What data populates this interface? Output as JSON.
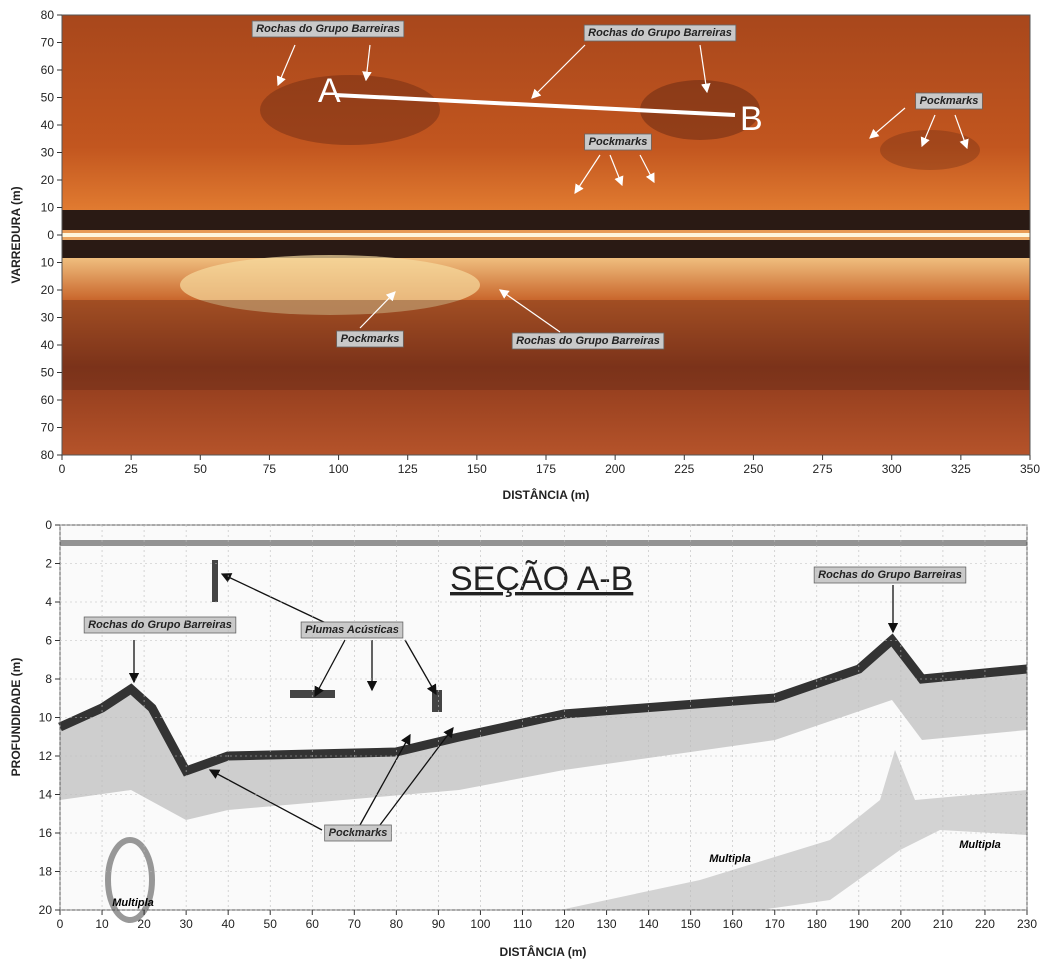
{
  "top_panel": {
    "y_axis_label": "VARREDURA (m)",
    "x_axis_label": "DISTÂNCIA (m)",
    "xticks": [
      0,
      25,
      50,
      75,
      100,
      125,
      150,
      175,
      200,
      225,
      250,
      275,
      300,
      325,
      350
    ],
    "yticks": [
      80,
      70,
      60,
      50,
      40,
      30,
      20,
      10,
      0,
      10,
      20,
      30,
      40,
      50,
      60,
      70,
      80
    ],
    "labels": [
      "Rochas do Grupo Barreiras",
      "Rochas do Grupo Barreiras",
      "Pockmarks",
      "Pockmarks",
      "Pockmarks",
      "Rochas do Grupo Barreiras"
    ],
    "point_a": "A",
    "point_b": "B"
  },
  "bottom_panel": {
    "title": "SEÇÃO A-B",
    "y_axis_label": "PROFUNDIDADE (m)",
    "x_axis_label": "DISTÂNCIA (m)",
    "xticks": [
      0,
      10,
      20,
      30,
      40,
      50,
      60,
      70,
      80,
      90,
      100,
      110,
      120,
      130,
      140,
      150,
      160,
      170,
      180,
      190,
      200,
      210,
      220,
      230
    ],
    "yticks": [
      0,
      2,
      4,
      6,
      8,
      10,
      12,
      14,
      16,
      18,
      20
    ],
    "labels": [
      "Rochas do Grupo Barreiras",
      "Rochas do Grupo Barreiras",
      "Plumas Acústicas",
      "Pockmarks",
      "Multipla",
      "Multipla",
      "Multipla"
    ]
  }
}
